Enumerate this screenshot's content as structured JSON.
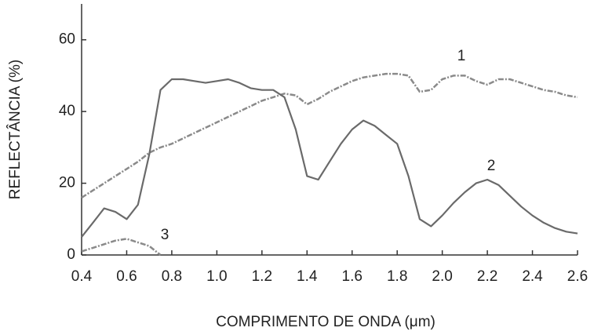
{
  "chart_data": {
    "type": "line",
    "xlabel": "COMPRIMENTO DE ONDA (μm)",
    "ylabel": "REFLECTÂNCIA (%)",
    "x": [
      0.4,
      0.45,
      0.5,
      0.55,
      0.6,
      0.65,
      0.7,
      0.75,
      0.8,
      0.85,
      0.9,
      0.95,
      1.0,
      1.05,
      1.1,
      1.15,
      1.2,
      1.25,
      1.3,
      1.35,
      1.4,
      1.45,
      1.5,
      1.55,
      1.6,
      1.65,
      1.7,
      1.75,
      1.8,
      1.85,
      1.9,
      1.95,
      2.0,
      2.05,
      2.1,
      2.15,
      2.2,
      2.25,
      2.3,
      2.35,
      2.4,
      2.45,
      2.5,
      2.55,
      2.6
    ],
    "series": [
      {
        "name": "1",
        "color": "#8a8a8a",
        "dashed": true,
        "values": [
          16,
          18,
          20,
          22,
          24,
          26,
          28.5,
          30,
          31,
          32.5,
          34,
          35.5,
          37,
          38.5,
          40,
          41.5,
          43,
          44,
          45,
          44.5,
          42,
          43.5,
          45.5,
          47,
          48.5,
          49.5,
          50,
          50.5,
          50.5,
          50,
          45.5,
          46,
          49,
          50,
          50,
          48.5,
          47.5,
          49,
          49,
          48,
          47,
          46,
          45.5,
          44.5,
          44
        ]
      },
      {
        "name": "2",
        "color": "#6a6a6a",
        "dashed": false,
        "values": [
          5,
          9,
          13,
          12,
          10,
          14,
          28,
          46,
          49,
          49,
          48.5,
          48,
          48.5,
          49,
          48,
          46.5,
          46,
          46,
          44,
          35,
          22,
          21,
          26,
          31,
          35,
          37.5,
          36,
          33.5,
          31,
          22,
          10,
          8,
          11,
          14.5,
          17.5,
          20,
          21,
          19.5,
          16.5,
          13.5,
          11,
          9,
          7.5,
          6.5,
          6
        ]
      },
      {
        "name": "3",
        "color": "#8a8a8a",
        "dashed": true,
        "values": [
          1,
          2,
          3,
          4,
          4.5,
          3.5,
          2.5,
          0,
          null,
          null,
          null,
          null,
          null,
          null,
          null,
          null,
          null,
          null,
          null,
          null,
          null,
          null,
          null,
          null,
          null,
          null,
          null,
          null,
          null,
          null,
          null,
          null,
          null,
          null,
          null,
          null,
          null,
          null,
          null,
          null,
          null,
          null,
          null,
          null,
          null
        ]
      }
    ],
    "xlim": [
      0.4,
      2.6
    ],
    "xticks": [
      0.4,
      0.6,
      0.8,
      {
        "value": 1,
        "label": "1.0"
      },
      1.2,
      1.4,
      1.6,
      1.8,
      {
        "value": 2,
        "label": "2.0"
      },
      2.2,
      2.4,
      2.6
    ],
    "ylim": [
      0,
      70
    ],
    "yticks": [
      0,
      20,
      40,
      60
    ],
    "grid": false
  }
}
